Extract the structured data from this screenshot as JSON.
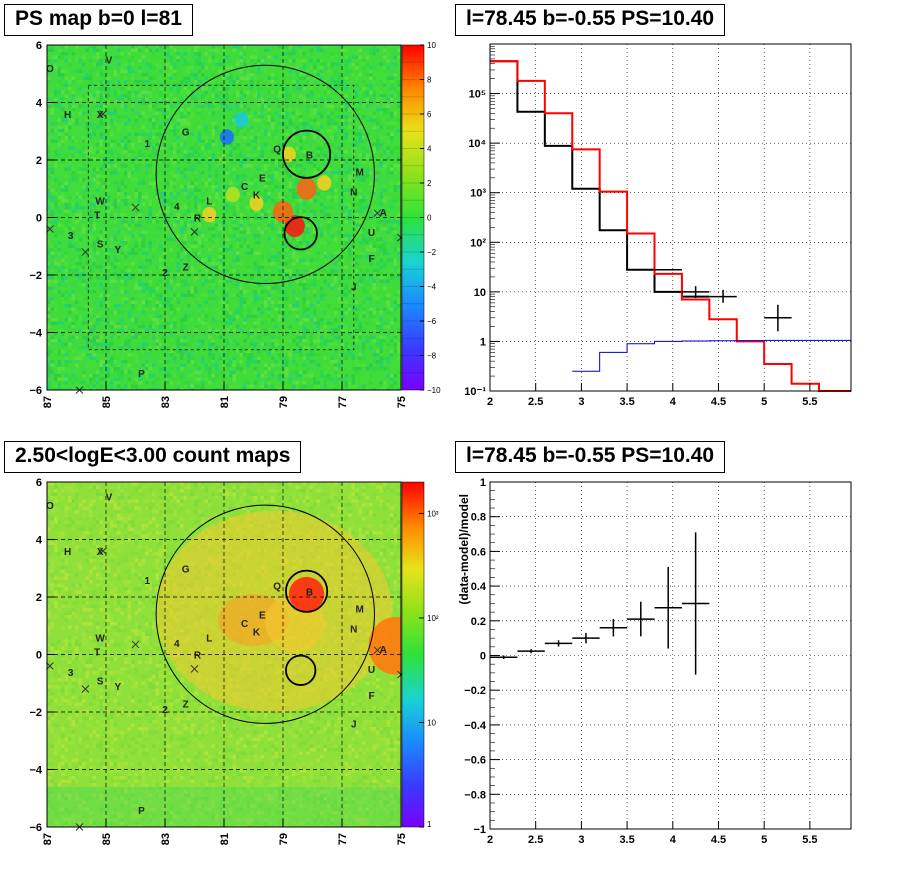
{
  "panels": {
    "top_left_title": "PS map b=0 l=81",
    "top_right_title": "l=78.45 b=-0.55 PS=10.40",
    "bottom_left_title": "2.50<logE<3.00 count maps",
    "bottom_right_title": "l=78.45 b=-0.55 PS=10.40"
  },
  "chart_data": [
    {
      "type": "heatmap",
      "title": "PS map b=0 l=81",
      "x_ticks": [
        "87",
        "85",
        "83",
        "81",
        "79",
        "77",
        "75"
      ],
      "xlim": [
        87,
        75
      ],
      "y_ticks": [
        "6",
        "4",
        "2",
        "0",
        "−2",
        "−4",
        "−6"
      ],
      "ylim": [
        -6,
        6
      ],
      "colorbar_ticks": [
        "10",
        "8",
        "6",
        "4",
        "2",
        "0",
        "−2",
        "−4",
        "−6",
        "−8",
        "−10"
      ],
      "colorbar_range": [
        -10,
        10
      ],
      "labels": [
        {
          "t": "O",
          "l": 86.9,
          "b": 5.2
        },
        {
          "t": "V",
          "l": 84.9,
          "b": 5.5
        },
        {
          "t": "H",
          "l": 86.3,
          "b": 3.6
        },
        {
          "t": "X",
          "l": 85.2,
          "b": 3.6
        },
        {
          "t": "1",
          "l": 83.6,
          "b": 2.6
        },
        {
          "t": "G",
          "l": 82.3,
          "b": 3.0
        },
        {
          "t": "Q",
          "l": 79.2,
          "b": 2.4
        },
        {
          "t": "B",
          "l": 78.1,
          "b": 2.2
        },
        {
          "t": "M",
          "l": 76.4,
          "b": 1.6
        },
        {
          "t": "E",
          "l": 79.7,
          "b": 1.4
        },
        {
          "t": "C",
          "l": 80.3,
          "b": 1.1
        },
        {
          "t": "K",
          "l": 79.9,
          "b": 0.8
        },
        {
          "t": "N",
          "l": 76.6,
          "b": 0.9
        },
        {
          "t": "L",
          "l": 81.5,
          "b": 0.6
        },
        {
          "t": "4",
          "l": 82.6,
          "b": 0.4
        },
        {
          "t": "R",
          "l": 81.9,
          "b": 0.0
        },
        {
          "t": "W",
          "l": 85.2,
          "b": 0.6
        },
        {
          "t": "T",
          "l": 85.3,
          "b": 0.1
        },
        {
          "t": "A",
          "l": 75.6,
          "b": 0.2
        },
        {
          "t": "U",
          "l": 76.0,
          "b": -0.5
        },
        {
          "t": "3",
          "l": 86.2,
          "b": -0.6
        },
        {
          "t": "Y",
          "l": 84.6,
          "b": -1.1
        },
        {
          "t": "S",
          "l": 85.2,
          "b": -0.9
        },
        {
          "t": "F",
          "l": 76.0,
          "b": -1.4
        },
        {
          "t": "2",
          "l": 83.0,
          "b": -1.9
        },
        {
          "t": "Z",
          "l": 82.3,
          "b": -1.7
        },
        {
          "t": "J",
          "l": 76.6,
          "b": -2.4
        },
        {
          "t": "P",
          "l": 83.8,
          "b": -5.4
        }
      ],
      "crosses": [
        {
          "l": 86.9,
          "b": -0.4
        },
        {
          "l": 85.7,
          "b": -1.2
        },
        {
          "l": 84.0,
          "b": 0.35
        },
        {
          "l": 82.0,
          "b": -0.5
        },
        {
          "l": 75.8,
          "b": 0.15
        },
        {
          "l": 75.0,
          "b": -0.7
        },
        {
          "l": 85.9,
          "b": -6.0
        },
        {
          "l": 85.1,
          "b": 3.6
        }
      ],
      "circles": [
        {
          "name": "region-circle",
          "l": 79.6,
          "b": 1.5,
          "r_deg": 3.7
        },
        {
          "name": "source-circle-upper",
          "l": 78.2,
          "b": 2.2,
          "r_deg": 0.8
        },
        {
          "name": "source-circle-lower",
          "l": 78.4,
          "b": -0.55,
          "r_deg": 0.55
        }
      ],
      "hotspots": [
        {
          "l": 78.6,
          "b": -0.3,
          "value": 10
        },
        {
          "l": 79.0,
          "b": 0.2,
          "value": 8
        },
        {
          "l": 78.2,
          "b": 1.0,
          "value": 7
        },
        {
          "l": 79.9,
          "b": 0.5,
          "value": 5
        },
        {
          "l": 78.8,
          "b": 2.2,
          "value": 5
        },
        {
          "l": 77.6,
          "b": 1.2,
          "value": 5
        },
        {
          "l": 81.5,
          "b": 0.1,
          "value": 6
        },
        {
          "l": 80.9,
          "b": 2.8,
          "value": -6
        },
        {
          "l": 80.4,
          "b": 3.4,
          "value": -4
        },
        {
          "l": 80.7,
          "b": 0.8,
          "value": 4
        }
      ]
    },
    {
      "type": "line",
      "title": "l=78.45 b=-0.55 PS=10.40",
      "x_ticks": [
        "2",
        "2.5",
        "3",
        "3.5",
        "4",
        "4.5",
        "5",
        "5.5"
      ],
      "xlim": [
        2,
        5.95
      ],
      "yscale": "log",
      "ylim": [
        0.1,
        1000000
      ],
      "y_ticks": [
        "10⁻¹",
        "1",
        "10",
        "10²",
        "10³",
        "10⁴",
        "10⁵"
      ],
      "grid": true,
      "series": [
        {
          "style": "step",
          "color": "#000000",
          "edges": [
            2.0,
            2.3,
            2.6,
            2.9,
            3.2,
            3.5,
            3.8,
            4.1,
            4.4
          ],
          "values": [
            450000,
            43000,
            8800,
            1200,
            175,
            28,
            10,
            8
          ]
        },
        {
          "style": "step",
          "color": "#ff0000",
          "edges": [
            2.0,
            2.3,
            2.6,
            2.9,
            3.2,
            3.5,
            3.8,
            4.1,
            4.4,
            4.7,
            5.0,
            5.3,
            5.6,
            5.95
          ],
          "values": [
            450000,
            180000,
            40000,
            7500,
            1050,
            150,
            23,
            7,
            2.8,
            1.0,
            0.35,
            0.14,
            0.1
          ]
        },
        {
          "style": "step",
          "color": "#0000cc",
          "edges": [
            2.9,
            3.2,
            3.5,
            3.8,
            4.1,
            4.4,
            4.7,
            5.0,
            5.95
          ],
          "values": [
            0.25,
            0.6,
            0.9,
            1.0,
            1.02,
            1.03,
            1.04,
            1.05
          ]
        },
        {
          "style": "errorbar",
          "color": "#000000",
          "points": [
            {
              "x": 3.95,
              "y": 28,
              "xerr": 0.15
            },
            {
              "x": 4.25,
              "y": 10,
              "xerr": 0.15,
              "ylo": 7.5,
              "yhi": 13
            },
            {
              "x": 4.55,
              "y": 8,
              "xerr": 0.15,
              "ylo": 6,
              "yhi": 11
            },
            {
              "x": 5.15,
              "y": 3.0,
              "xerr": 0.15,
              "ylo": 1.6,
              "yhi": 5.5
            }
          ]
        }
      ]
    },
    {
      "type": "heatmap",
      "title": "2.50<logE<3.00 count maps",
      "x_ticks": [
        "87",
        "85",
        "83",
        "81",
        "79",
        "77",
        "75"
      ],
      "xlim": [
        87,
        75
      ],
      "y_ticks": [
        "6",
        "4",
        "2",
        "0",
        "−2",
        "−4",
        "−6"
      ],
      "ylim": [
        -6,
        6
      ],
      "colorbar_scale": "log",
      "colorbar_ticks": [
        "10³",
        "10²",
        "10",
        "1"
      ],
      "colorbar_range": [
        1,
        2000
      ],
      "labels": [
        {
          "t": "O",
          "l": 86.9,
          "b": 5.2
        },
        {
          "t": "V",
          "l": 84.9,
          "b": 5.5
        },
        {
          "t": "H",
          "l": 86.3,
          "b": 3.6
        },
        {
          "t": "X",
          "l": 85.2,
          "b": 3.6
        },
        {
          "t": "1",
          "l": 83.6,
          "b": 2.6
        },
        {
          "t": "G",
          "l": 82.3,
          "b": 3.0
        },
        {
          "t": "Q",
          "l": 79.2,
          "b": 2.4
        },
        {
          "t": "B",
          "l": 78.1,
          "b": 2.2
        },
        {
          "t": "M",
          "l": 76.4,
          "b": 1.6
        },
        {
          "t": "E",
          "l": 79.7,
          "b": 1.4
        },
        {
          "t": "C",
          "l": 80.3,
          "b": 1.1
        },
        {
          "t": "K",
          "l": 79.9,
          "b": 0.8
        },
        {
          "t": "N",
          "l": 76.6,
          "b": 0.9
        },
        {
          "t": "L",
          "l": 81.5,
          "b": 0.6
        },
        {
          "t": "4",
          "l": 82.6,
          "b": 0.4
        },
        {
          "t": "R",
          "l": 81.9,
          "b": 0.0
        },
        {
          "t": "W",
          "l": 85.2,
          "b": 0.6
        },
        {
          "t": "T",
          "l": 85.3,
          "b": 0.1
        },
        {
          "t": "A",
          "l": 75.6,
          "b": 0.2
        },
        {
          "t": "U",
          "l": 76.0,
          "b": -0.5
        },
        {
          "t": "3",
          "l": 86.2,
          "b": -0.6
        },
        {
          "t": "Y",
          "l": 84.6,
          "b": -1.1
        },
        {
          "t": "S",
          "l": 85.2,
          "b": -0.9
        },
        {
          "t": "F",
          "l": 76.0,
          "b": -1.4
        },
        {
          "t": "2",
          "l": 83.0,
          "b": -1.9
        },
        {
          "t": "Z",
          "l": 82.3,
          "b": -1.7
        },
        {
          "t": "J",
          "l": 76.6,
          "b": -2.4
        },
        {
          "t": "P",
          "l": 83.8,
          "b": -5.4
        }
      ],
      "crosses": [
        {
          "l": 86.9,
          "b": -0.4
        },
        {
          "l": 85.7,
          "b": -1.2
        },
        {
          "l": 84.0,
          "b": 0.35
        },
        {
          "l": 82.0,
          "b": -0.5
        },
        {
          "l": 75.8,
          "b": 0.15
        },
        {
          "l": 75.0,
          "b": -0.7
        },
        {
          "l": 85.9,
          "b": -6.0
        },
        {
          "l": 85.1,
          "b": 3.6
        }
      ],
      "circles": [
        {
          "name": "region-circle",
          "l": 79.6,
          "b": 1.4,
          "r_deg": 3.7
        },
        {
          "name": "source-circle-upper",
          "l": 78.2,
          "b": 2.2,
          "r_deg": 0.7
        },
        {
          "name": "source-circle-lower",
          "l": 78.4,
          "b": -0.55,
          "r_deg": 0.5
        }
      ],
      "blobs": [
        {
          "l": 79.3,
          "b": 1.5,
          "value": 700,
          "rx": 4.0,
          "ry": 3.5
        },
        {
          "l": 80.0,
          "b": 1.2,
          "value": 900,
          "rx": 1.2,
          "ry": 0.9
        },
        {
          "l": 78.6,
          "b": 1.1,
          "value": 800,
          "rx": 1.0,
          "ry": 1.0
        },
        {
          "l": 78.2,
          "b": 2.1,
          "value": 1800,
          "rx": 0.6,
          "ry": 0.6
        },
        {
          "l": 75.2,
          "b": 0.3,
          "value": 1200,
          "rx": 0.9,
          "ry": 1.0
        }
      ]
    },
    {
      "type": "scatter",
      "title": "l=78.45 b=-0.55 PS=10.40",
      "ylabel": "(data-model)/model",
      "x_ticks": [
        "2",
        "2.5",
        "3",
        "3.5",
        "4",
        "4.5",
        "5",
        "5.5"
      ],
      "xlim": [
        2,
        5.95
      ],
      "y_ticks": [
        "1",
        "0.8",
        "0.6",
        "0.4",
        "0.2",
        "0",
        "−0.2",
        "−0.4",
        "−0.6",
        "−0.8",
        "−1"
      ],
      "ylim": [
        -1,
        1
      ],
      "grid": true,
      "points": [
        {
          "x": 2.15,
          "y": -0.01,
          "xerr": 0.15,
          "yerr": 0.01
        },
        {
          "x": 2.45,
          "y": 0.025,
          "xerr": 0.15,
          "yerr": 0.012
        },
        {
          "x": 2.75,
          "y": 0.07,
          "xerr": 0.15,
          "yerr": 0.018
        },
        {
          "x": 3.05,
          "y": 0.1,
          "xerr": 0.15,
          "yerr": 0.03
        },
        {
          "x": 3.35,
          "y": 0.16,
          "xerr": 0.15,
          "yerr": 0.05
        },
        {
          "x": 3.65,
          "y": 0.21,
          "xerr": 0.15,
          "yerr": 0.1
        },
        {
          "x": 3.95,
          "y": 0.275,
          "xerr": 0.15,
          "yerr": 0.235
        },
        {
          "x": 4.25,
          "y": 0.3,
          "xerr": 0.15,
          "yerr": 0.41
        }
      ]
    }
  ]
}
